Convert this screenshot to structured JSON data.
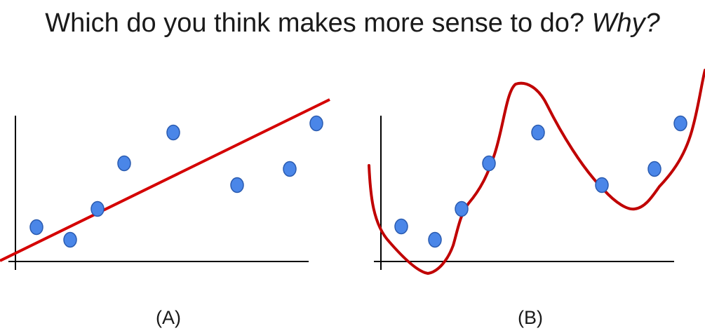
{
  "title": {
    "text": "Which do you think makes more sense to do? ",
    "emphasis": "Why?"
  },
  "panels": [
    {
      "caption": "(A)",
      "fit": "straight line"
    },
    {
      "caption": "(B)",
      "fit": "wiggly curve"
    }
  ],
  "colors": {
    "point": "#4a86e8",
    "point_stroke": "#2a5bb0",
    "fit_line": "#d40000",
    "axes": "#000000"
  }
}
